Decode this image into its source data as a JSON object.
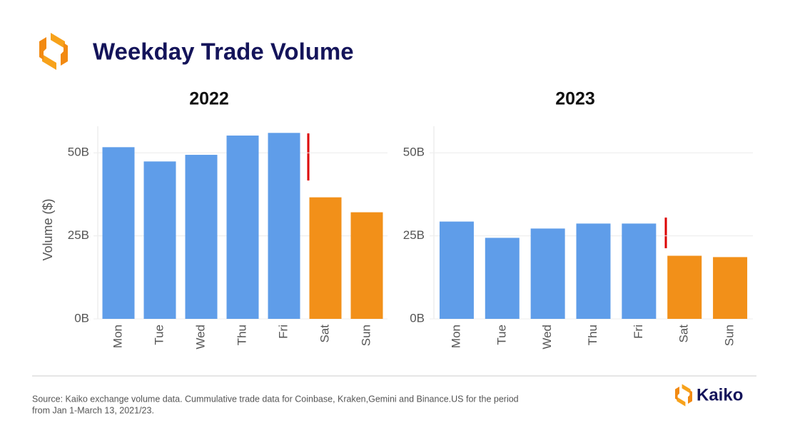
{
  "title": "Weekday Trade Volume",
  "chart_data": [
    {
      "type": "bar",
      "title": "2022",
      "y_label": "Volume ($)",
      "categories": [
        "Mon",
        "Tue",
        "Wed",
        "Thu",
        "Fri",
        "Sat",
        "Sun"
      ],
      "values": [
        51.7,
        47.4,
        49.4,
        55.2,
        56,
        36.6,
        32.1
      ],
      "colors": [
        "#5f9de9",
        "#5f9de9",
        "#5f9de9",
        "#5f9de9",
        "#5f9de9",
        "#f29019",
        "#f29019"
      ],
      "ylim": [
        0,
        58
      ],
      "yticks": [
        {
          "value": 0,
          "label": "0B"
        },
        {
          "value": 25,
          "label": "25B"
        },
        {
          "value": 50,
          "label": "50B"
        }
      ],
      "grid": true
    },
    {
      "type": "bar",
      "title": "2023",
      "categories": [
        "Mon",
        "Tue",
        "Wed",
        "Thu",
        "Fri",
        "Sat",
        "Sun"
      ],
      "values": [
        29.3,
        24.4,
        27.2,
        28.7,
        28.7,
        19,
        18.6
      ],
      "colors": [
        "#5f9de9",
        "#5f9de9",
        "#5f9de9",
        "#5f9de9",
        "#5f9de9",
        "#f29019",
        "#f29019"
      ],
      "ylim": [
        0,
        58
      ],
      "yticks": [
        {
          "value": 0,
          "label": "0B"
        },
        {
          "value": 25,
          "label": "25B"
        },
        {
          "value": 50,
          "label": "50B"
        }
      ],
      "grid": true
    }
  ],
  "source": [
    "Source: Kaiko exchange volume data. Cummulative trade data for Coinbase, Kraken,Gemini and Binance.US for the period",
    "from Jan 1-March 13, 2021/23."
  ],
  "brand": "Kaiko"
}
